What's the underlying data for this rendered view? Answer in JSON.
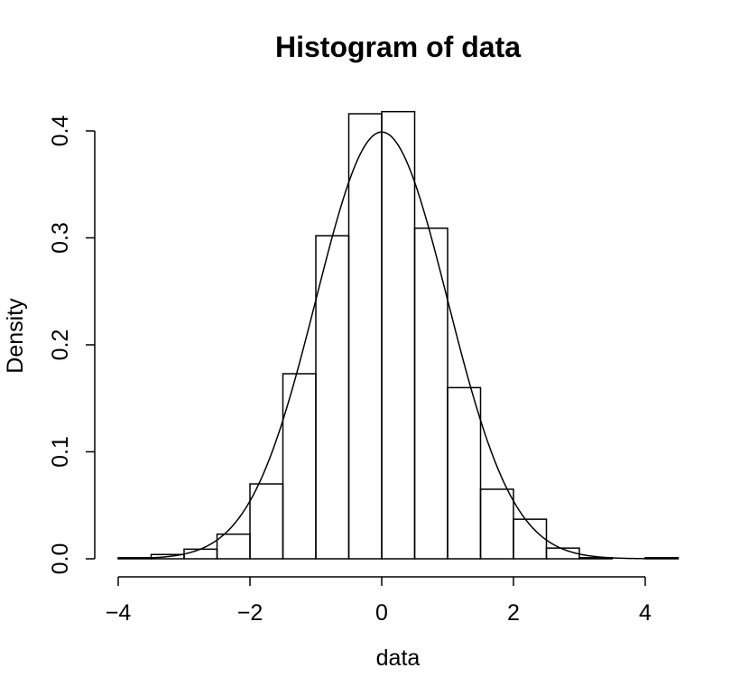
{
  "chart_data": {
    "type": "bar",
    "subtype": "histogram-with-density-curve",
    "title": "Histogram of data",
    "xlabel": "data",
    "ylabel": "Density",
    "xlim": [
      -4,
      4.5
    ],
    "ylim": [
      0,
      0.42
    ],
    "x_ticks": [
      -4,
      -2,
      0,
      2,
      4
    ],
    "x_tick_labels": [
      "−4",
      "−2",
      "0",
      "2",
      "4"
    ],
    "y_ticks": [
      0.0,
      0.1,
      0.2,
      0.3,
      0.4
    ],
    "y_tick_labels": [
      "0.0",
      "0.1",
      "0.2",
      "0.3",
      "0.4"
    ],
    "bin_width": 0.5,
    "bins": [
      {
        "x0": -4.0,
        "x1": -3.5,
        "density": 0.001
      },
      {
        "x0": -3.5,
        "x1": -3.0,
        "density": 0.004
      },
      {
        "x0": -3.0,
        "x1": -2.5,
        "density": 0.009
      },
      {
        "x0": -2.5,
        "x1": -2.0,
        "density": 0.023
      },
      {
        "x0": -2.0,
        "x1": -1.5,
        "density": 0.07
      },
      {
        "x0": -1.5,
        "x1": -1.0,
        "density": 0.173
      },
      {
        "x0": -1.0,
        "x1": -0.5,
        "density": 0.302
      },
      {
        "x0": -0.5,
        "x1": 0.0,
        "density": 0.416
      },
      {
        "x0": 0.0,
        "x1": 0.5,
        "density": 0.418
      },
      {
        "x0": 0.5,
        "x1": 1.0,
        "density": 0.309
      },
      {
        "x0": 1.0,
        "x1": 1.5,
        "density": 0.16
      },
      {
        "x0": 1.5,
        "x1": 2.0,
        "density": 0.065
      },
      {
        "x0": 2.0,
        "x1": 2.5,
        "density": 0.037
      },
      {
        "x0": 2.5,
        "x1": 3.0,
        "density": 0.01
      },
      {
        "x0": 3.0,
        "x1": 3.5,
        "density": 0.001
      },
      {
        "x0": 3.5,
        "x1": 4.0,
        "density": 0.0
      },
      {
        "x0": 4.0,
        "x1": 4.5,
        "density": 0.001
      }
    ],
    "curve": {
      "distribution": "normal",
      "mean": 0,
      "sd": 1,
      "range": [
        -4,
        4
      ]
    },
    "grid": false,
    "legend": "none"
  }
}
